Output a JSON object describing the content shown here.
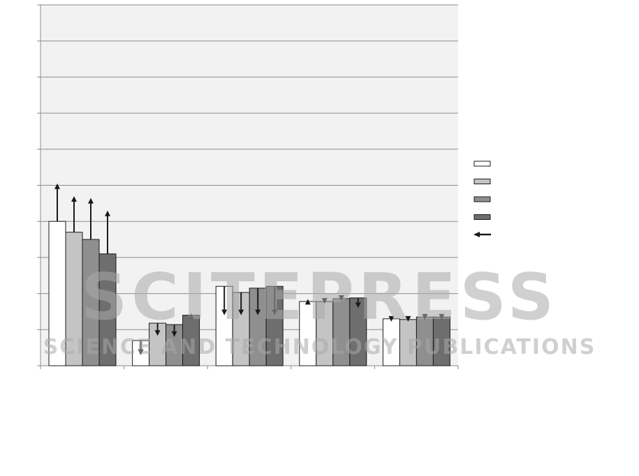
{
  "chart_data": {
    "type": "bar",
    "title": "",
    "xlabel": "",
    "ylabel": "",
    "ylim": [
      0,
      10
    ],
    "grid": true,
    "legend_placement": "right",
    "categories": [
      "",
      "",
      "",
      "",
      ""
    ],
    "series": [
      {
        "values": [
          4.0,
          0.7,
          2.2,
          1.78,
          1.3
        ],
        "arrow_to": [
          5.05,
          0.3,
          1.4,
          1.85,
          1.22
        ],
        "color": "#ffffff"
      },
      {
        "values": [
          3.7,
          1.18,
          2.03,
          1.78,
          1.28
        ],
        "arrow_to": [
          4.7,
          0.83,
          1.4,
          1.72,
          1.22
        ],
        "color": "#c4c4c4"
      },
      {
        "values": [
          3.5,
          1.14,
          2.15,
          1.86,
          1.35
        ],
        "arrow_to": [
          4.65,
          0.8,
          1.4,
          1.8,
          1.28
        ],
        "color": "#8f8f8f"
      },
      {
        "values": [
          3.1,
          1.4,
          2.2,
          1.88,
          1.35
        ],
        "arrow_to": [
          4.3,
          1.45,
          1.4,
          1.6,
          1.28
        ],
        "color": "#6e6e6e"
      }
    ],
    "arrow_legend_color": "#1a1a1a",
    "plot_background": "#f2f2f2",
    "gridline_color": "#8c8c8c"
  },
  "watermark": {
    "line1": "SCITEPRESS",
    "line2": "SCIENCE AND TECHNOLOGY PUBLICATIONS"
  }
}
